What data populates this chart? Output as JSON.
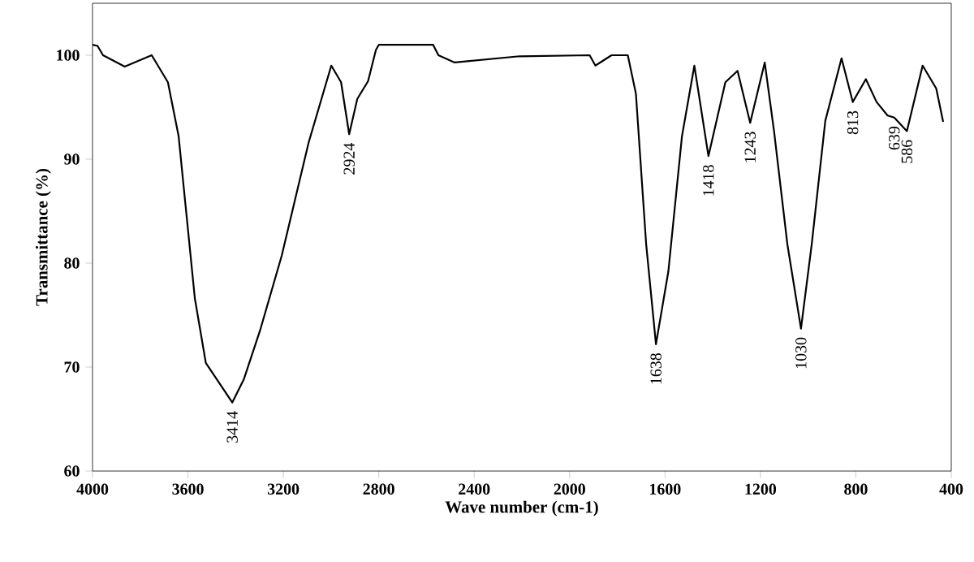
{
  "chart_data": {
    "type": "line",
    "xlabel": "Wave number (cm-1)",
    "ylabel": "Transmittance (%)",
    "x": [
      4000,
      3979,
      3956,
      3865,
      3752,
      3684,
      3639,
      3605,
      3571,
      3525,
      3414,
      3366,
      3298,
      3207,
      3094,
      2999,
      2958,
      2924,
      2890,
      2845,
      2812,
      2800,
      2572,
      2550,
      2482,
      2210,
      1916,
      1892,
      1824,
      1756,
      1722,
      1679,
      1638,
      1586,
      1529,
      1477,
      1418,
      1347,
      1296,
      1243,
      1182,
      1143,
      1087,
      1030,
      985,
      928,
      860,
      813,
      758,
      713,
      667,
      639,
      586,
      520,
      463,
      434
    ],
    "values": [
      101,
      100.9,
      100,
      98.9,
      100,
      97.4,
      92.2,
      84.4,
      76.6,
      70.4,
      66.6,
      68.8,
      73.5,
      80.7,
      91.6,
      99.0,
      97.4,
      92.4,
      95.8,
      97.5,
      100.5,
      101,
      101,
      100,
      99.3,
      99.9,
      100,
      99.0,
      100,
      100,
      96.3,
      81.8,
      72.2,
      79.2,
      92.2,
      99.0,
      90.3,
      97.4,
      98.5,
      93.5,
      99.3,
      92.7,
      81.8,
      73.7,
      81.8,
      93.7,
      99.7,
      95.5,
      97.7,
      95.5,
      94.2,
      94.0,
      92.7,
      99.0,
      96.8,
      93.6
    ],
    "color": "#000000",
    "xlim": [
      4000,
      400
    ],
    "xticks": [
      4000,
      3600,
      3200,
      2800,
      2400,
      2000,
      1600,
      1200,
      800,
      400
    ],
    "ylim": [
      60,
      105
    ],
    "yticks": [
      60,
      70,
      80,
      90,
      100
    ],
    "annotations": [
      {
        "text": "3414",
        "x": 3414,
        "y": 66.6
      },
      {
        "text": "2924",
        "x": 2924,
        "y": 92.4
      },
      {
        "text": "1638",
        "x": 1638,
        "y": 72.2
      },
      {
        "text": "1418",
        "x": 1418,
        "y": 90.3
      },
      {
        "text": "1243",
        "x": 1243,
        "y": 93.5
      },
      {
        "text": "1030",
        "x": 1030,
        "y": 73.7
      },
      {
        "text": "813",
        "x": 813,
        "y": 95.5
      },
      {
        "text": "639",
        "x": 639,
        "y": 94.0
      },
      {
        "text": "586",
        "x": 586,
        "y": 92.7
      }
    ]
  }
}
